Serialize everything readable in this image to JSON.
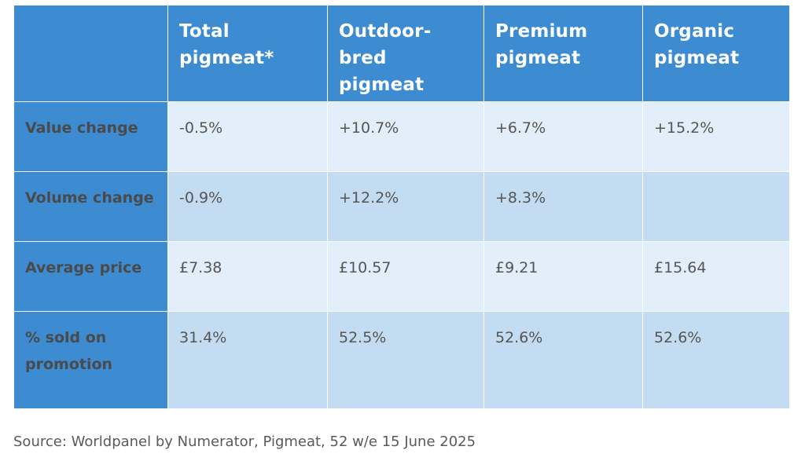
{
  "table": {
    "columns": [
      "",
      "Total pigmeat*",
      "Outdoor-bred pigmeat",
      "Premium pigmeat",
      "Organic pigmeat"
    ],
    "rows": [
      {
        "label": "Value change",
        "cells": [
          "-0.5%",
          "+10.7%",
          "+6.7%",
          "+15.2%"
        ]
      },
      {
        "label": "Volume change",
        "cells": [
          "-0.9%",
          "+12.2%",
          "+8.3%",
          ""
        ]
      },
      {
        "label": "Average price",
        "cells": [
          "£7.38",
          "£10.57",
          "£9.21",
          "£15.64"
        ]
      },
      {
        "label": "% sold on promotion",
        "cells": [
          "31.4%",
          "52.5%",
          "52.6%",
          "52.6%"
        ]
      }
    ]
  },
  "source": "Source: Worldpanel by Numerator, Pigmeat, 52 w/e 15 June 2025",
  "colors": {
    "header_bg": "#3d8bd0",
    "row_light": "#e2eef9",
    "row_mid": "#c3dcf1"
  }
}
